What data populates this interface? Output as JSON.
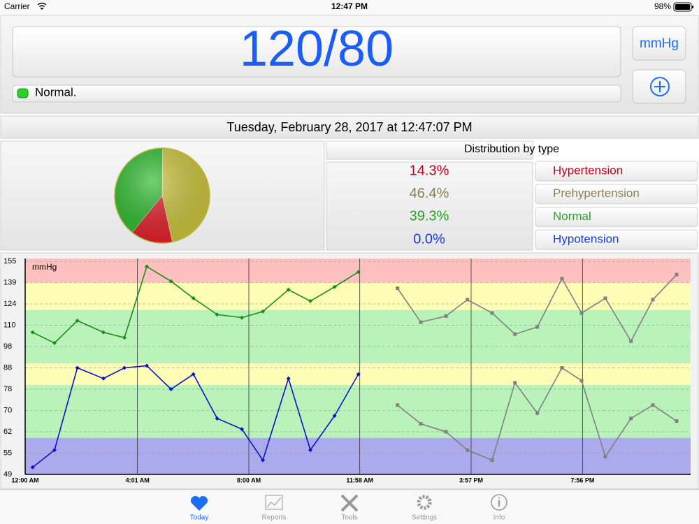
{
  "status_bar": {
    "carrier": "Carrier",
    "time": "12:47 PM",
    "battery": "98%"
  },
  "reading": {
    "value": "120/80",
    "status": "Normal.",
    "unit_button": "mmHg"
  },
  "date": "Tuesday, February 28, 2017 at 12:47:07 PM",
  "chart_data": [
    {
      "type": "pie",
      "title": "Distribution by type",
      "categories": [
        "Hypertension",
        "Prehypertension",
        "Normal",
        "Hypotension"
      ],
      "values": [
        14.3,
        46.4,
        39.3,
        0.0
      ],
      "value_labels": [
        "14.3%",
        "46.4%",
        "39.3%",
        "0.0%"
      ],
      "colors": [
        "#e0202a",
        "#c9c23c",
        "#2cb82c",
        "#2040e0"
      ],
      "text_colors": [
        "#c4001c",
        "#8a7f52",
        "#2aa02a",
        "#1a3ad8"
      ]
    },
    {
      "type": "line",
      "y_label": "mmHg",
      "xlim": [
        0,
        1428
      ],
      "xticks": [
        {
          "value": 0,
          "label": "12:00 AM"
        },
        {
          "value": 241,
          "label": "4:01 AM"
        },
        {
          "value": 480,
          "label": "8:00 AM"
        },
        {
          "value": 718,
          "label": "11:58 AM"
        },
        {
          "value": 957,
          "label": "3:57 PM"
        },
        {
          "value": 1196,
          "label": "7:56 PM"
        }
      ],
      "ylim": [
        49,
        155
      ],
      "yticks": [
        49,
        55,
        62,
        70,
        78,
        88,
        98,
        110,
        124,
        139,
        155
      ],
      "grid": true,
      "bands": [
        {
          "from": 139,
          "to": 155,
          "color": "#ffc0c0"
        },
        {
          "from": 120,
          "to": 139,
          "color": "#fdfdb6"
        },
        {
          "from": 90,
          "to": 120,
          "color": "#b9f3b9"
        },
        {
          "from": 80,
          "to": 90,
          "color": "#fdfdb6"
        },
        {
          "from": 60,
          "to": 80,
          "color": "#b9f3b9"
        },
        {
          "from": 49,
          "to": 60,
          "color": "#aaaaec"
        }
      ],
      "series": [
        {
          "color": "#1a8a1a",
          "marker": "diamond",
          "x": [
            16,
            63,
            112,
            168,
            213,
            261,
            313,
            361,
            412,
            465,
            510,
            565,
            612,
            664,
            715
          ],
          "values": [
            106,
            100,
            113,
            106,
            103,
            151,
            140,
            128,
            117,
            115,
            119,
            134,
            126,
            136,
            147
          ]
        },
        {
          "color": "#1010c8",
          "marker": "diamond",
          "x": [
            16,
            63,
            112,
            168,
            213,
            261,
            313,
            361,
            412,
            465,
            510,
            565,
            612,
            664,
            715
          ],
          "values": [
            51,
            56,
            88,
            83,
            88,
            89,
            78,
            85,
            67,
            63,
            53,
            83,
            56,
            68,
            85
          ]
        },
        {
          "color": "#808080",
          "marker": "square",
          "x": [
            799,
            849,
            903,
            949,
            1002,
            1051,
            1099,
            1152,
            1194,
            1245,
            1300,
            1347,
            1398
          ],
          "values": [
            135,
            112,
            116,
            127,
            118,
            105,
            109,
            142,
            118,
            128,
            101,
            127,
            145
          ]
        },
        {
          "color": "#808080",
          "marker": "square",
          "x": [
            799,
            849,
            903,
            949,
            1002,
            1051,
            1099,
            1152,
            1194,
            1245,
            1300,
            1347,
            1398
          ],
          "values": [
            72,
            65,
            62,
            56,
            53,
            81,
            69,
            88,
            82,
            54,
            67,
            72,
            66
          ]
        }
      ]
    }
  ],
  "tabs": [
    "Today",
    "Reports",
    "Tools",
    "Settings",
    "Info"
  ]
}
